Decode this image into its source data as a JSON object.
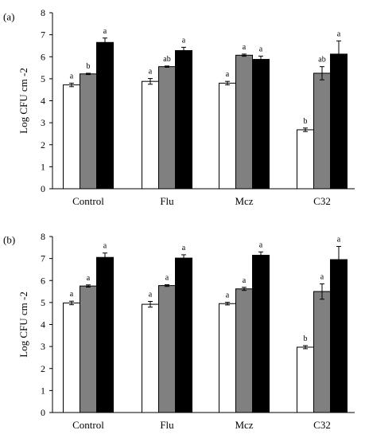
{
  "chart_data": [
    {
      "type": "bar",
      "panel_label": "(a)",
      "ylabel": "Log CFU cm -2",
      "ylim": [
        0,
        8
      ],
      "yticks": [
        "0",
        "1",
        "2",
        "3",
        "4",
        "5",
        "6",
        "7",
        "8"
      ],
      "categories": [
        "Control",
        "Flu",
        "Mcz",
        "C32"
      ],
      "series": [
        {
          "color": "#ffffff",
          "values": [
            4.72,
            4.88,
            4.8,
            2.68
          ],
          "errors": [
            0.08,
            0.13,
            0.08,
            0.08
          ],
          "letters": [
            "a",
            "a",
            "a",
            "b"
          ]
        },
        {
          "color": "#808080",
          "values": [
            5.22,
            5.55,
            6.07,
            5.25
          ],
          "errors": [
            0.03,
            0.03,
            0.05,
            0.3
          ],
          "letters": [
            "b",
            "ab",
            "a",
            "ab"
          ]
        },
        {
          "color": "#000000",
          "values": [
            6.65,
            6.28,
            5.88,
            6.12
          ],
          "errors": [
            0.2,
            0.15,
            0.15,
            0.6
          ],
          "letters": [
            "a",
            "a",
            "a",
            "a"
          ]
        }
      ]
    },
    {
      "type": "bar",
      "panel_label": "(b)",
      "ylabel": "Log CFU cm -2",
      "ylim": [
        0,
        8
      ],
      "yticks": [
        "0",
        "1",
        "2",
        "3",
        "4",
        "5",
        "6",
        "7",
        "8"
      ],
      "categories": [
        "Control",
        "Flu",
        "Mcz",
        "C32"
      ],
      "series": [
        {
          "color": "#ffffff",
          "values": [
            4.98,
            4.92,
            4.95,
            2.97
          ],
          "errors": [
            0.08,
            0.13,
            0.06,
            0.07
          ],
          "letters": [
            "a",
            "a",
            "a",
            "b"
          ]
        },
        {
          "color": "#808080",
          "values": [
            5.75,
            5.77,
            5.62,
            5.5
          ],
          "errors": [
            0.05,
            0.04,
            0.07,
            0.35
          ],
          "letters": [
            "a",
            "a",
            "a",
            "a"
          ]
        },
        {
          "color": "#000000",
          "values": [
            7.05,
            7.02,
            7.15,
            6.95
          ],
          "errors": [
            0.2,
            0.15,
            0.15,
            0.6
          ],
          "letters": [
            "a",
            "a",
            "a",
            "a"
          ]
        }
      ]
    }
  ]
}
